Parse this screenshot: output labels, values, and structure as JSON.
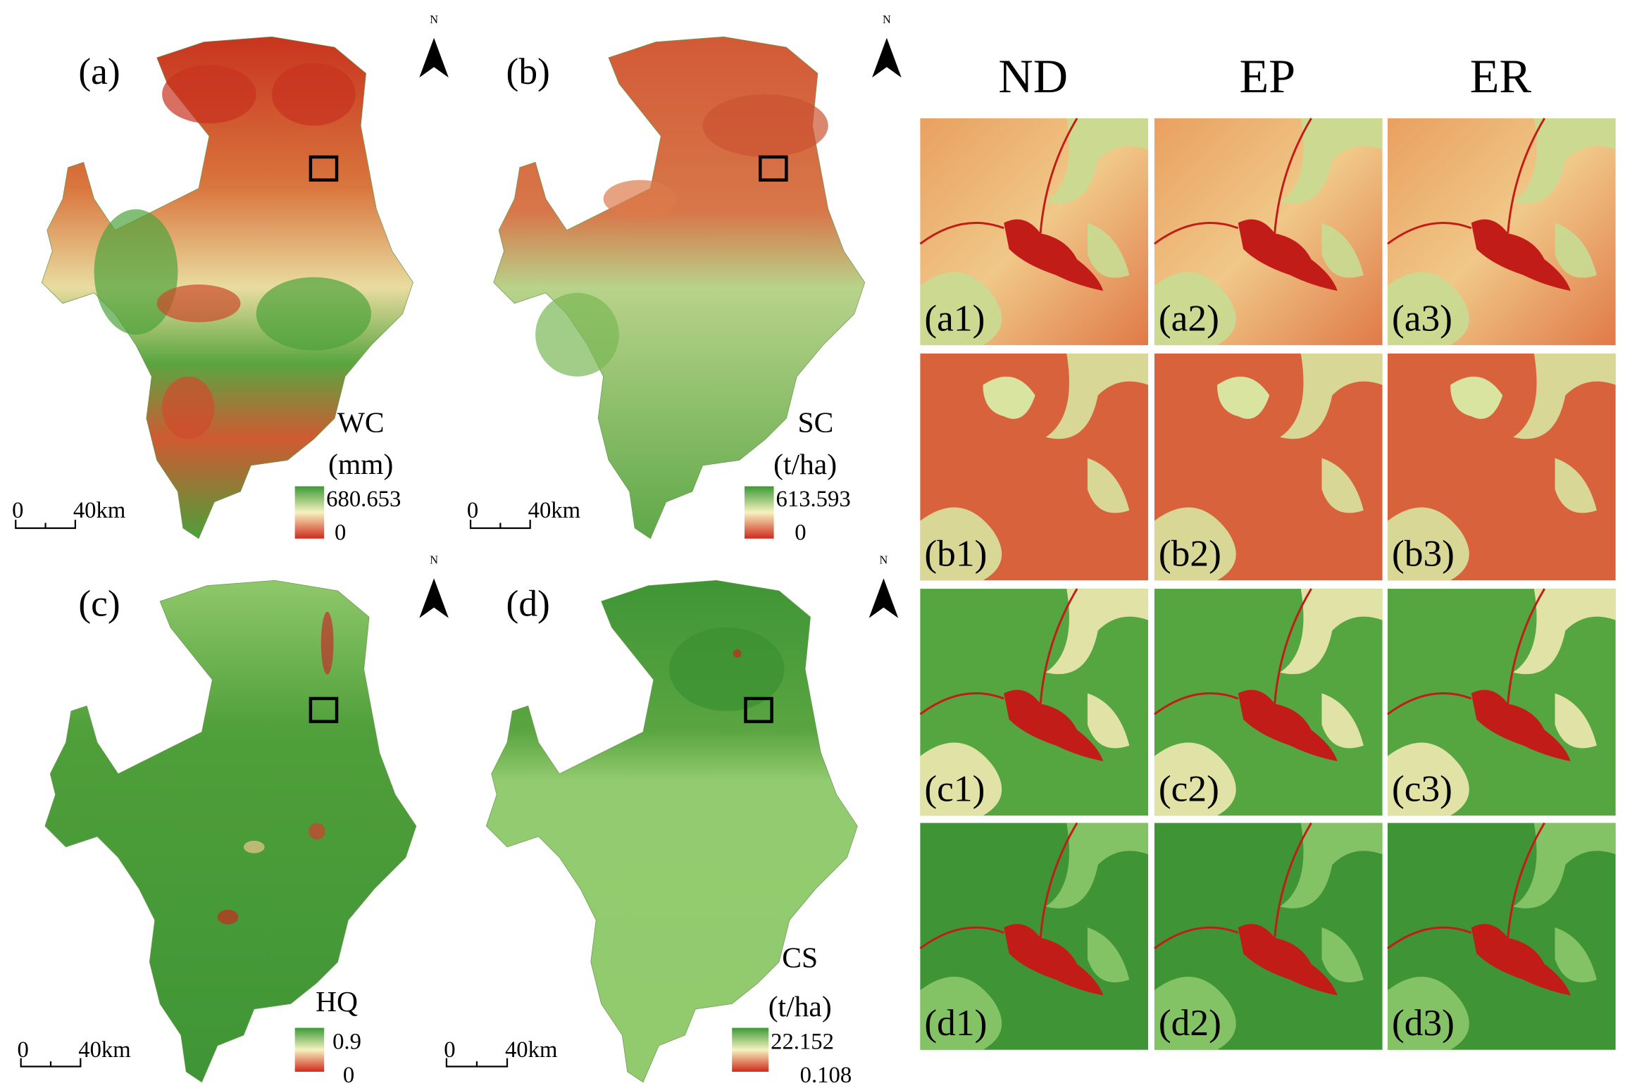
{
  "panels": [
    {
      "label": "(a)",
      "variable": "WC",
      "unit": "(mm)",
      "legend_max": "680.653",
      "legend_min": "0",
      "scale_start": "0",
      "scale_end": "40km",
      "north": "N"
    },
    {
      "label": "(b)",
      "variable": "SC",
      "unit": "(t/ha)",
      "legend_max": "613.593",
      "legend_min": "0",
      "scale_start": "0",
      "scale_end": "40km",
      "north": "N"
    },
    {
      "label": "(c)",
      "variable": "HQ",
      "legend_max": "0.9",
      "legend_min": "0",
      "scale_start": "0",
      "scale_end": "40km",
      "north": "N"
    },
    {
      "label": "(d)",
      "variable": "CS",
      "unit": "(t/ha)",
      "legend_max": "22.152",
      "legend_min": "0.108",
      "scale_start": "0",
      "scale_end": "40km",
      "north": "N"
    }
  ],
  "detail": {
    "columns": [
      "ND",
      "EP",
      "ER"
    ],
    "rows": [
      [
        "(a1)",
        "(a2)",
        "(a3)"
      ],
      [
        "(b1)",
        "(b2)",
        "(b3)"
      ],
      [
        "(c1)",
        "(c2)",
        "(c3)"
      ],
      [
        "(d1)",
        "(d2)",
        "(d3)"
      ]
    ]
  }
}
